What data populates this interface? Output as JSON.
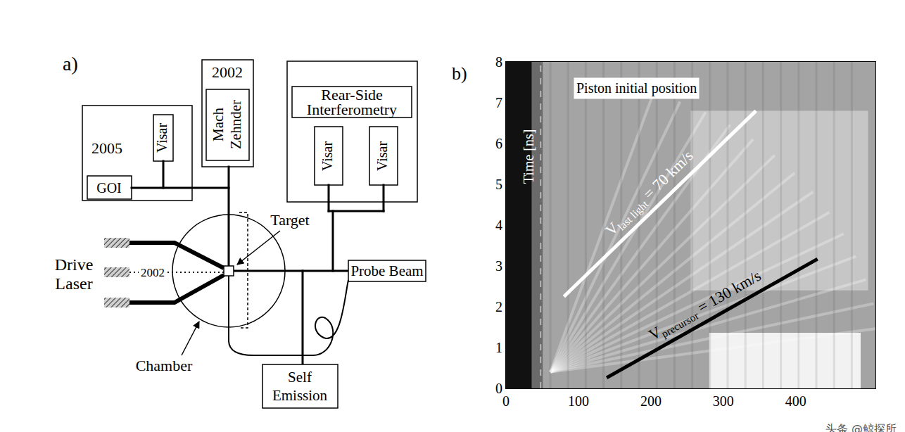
{
  "diagram": {
    "label": "a)",
    "group_2005": {
      "year": "2005",
      "visar": "Visar",
      "goi": "GOI"
    },
    "group_2002": {
      "year": "2002",
      "interferometer": [
        "Mach",
        "Zehnder"
      ]
    },
    "rear_side": {
      "title": [
        "Rear-Side",
        "Interferometry"
      ],
      "visars": [
        "Visar",
        "Visar"
      ]
    },
    "target": "Target",
    "drive_laser": [
      "Drive",
      "Laser"
    ],
    "drive_laser_2002": "2002",
    "probe_beam": "Probe Beam",
    "chamber": "Chamber",
    "self_emission": [
      "Self",
      "Emission"
    ]
  },
  "chart_data": {
    "type": "line",
    "panel_label": "b)",
    "y_label": "Time [ns]",
    "xlim": [
      0,
      510
    ],
    "xticks": [
      0,
      100,
      200,
      300,
      400
    ],
    "ylim": [
      0,
      8
    ],
    "yticks": [
      0,
      1,
      2,
      3,
      4,
      5,
      6,
      7,
      8
    ],
    "grid": false,
    "piston": {
      "text": "Piston initial position",
      "x": 48,
      "line_style": "dashed"
    },
    "series": [
      {
        "symbol": "V",
        "subscript": "last light",
        "text": "= 70 km/s",
        "color": "#ffffff",
        "x": [
          80,
          345
        ],
        "y": [
          2.25,
          6.8
        ]
      },
      {
        "symbol": "V",
        "subscript": "precursor",
        "text": "= 130 km/s",
        "color": "#000000",
        "x": [
          139,
          430
        ],
        "y": [
          0.26,
          3.17
        ]
      }
    ],
    "watermark": "头条 @鲸探所"
  }
}
